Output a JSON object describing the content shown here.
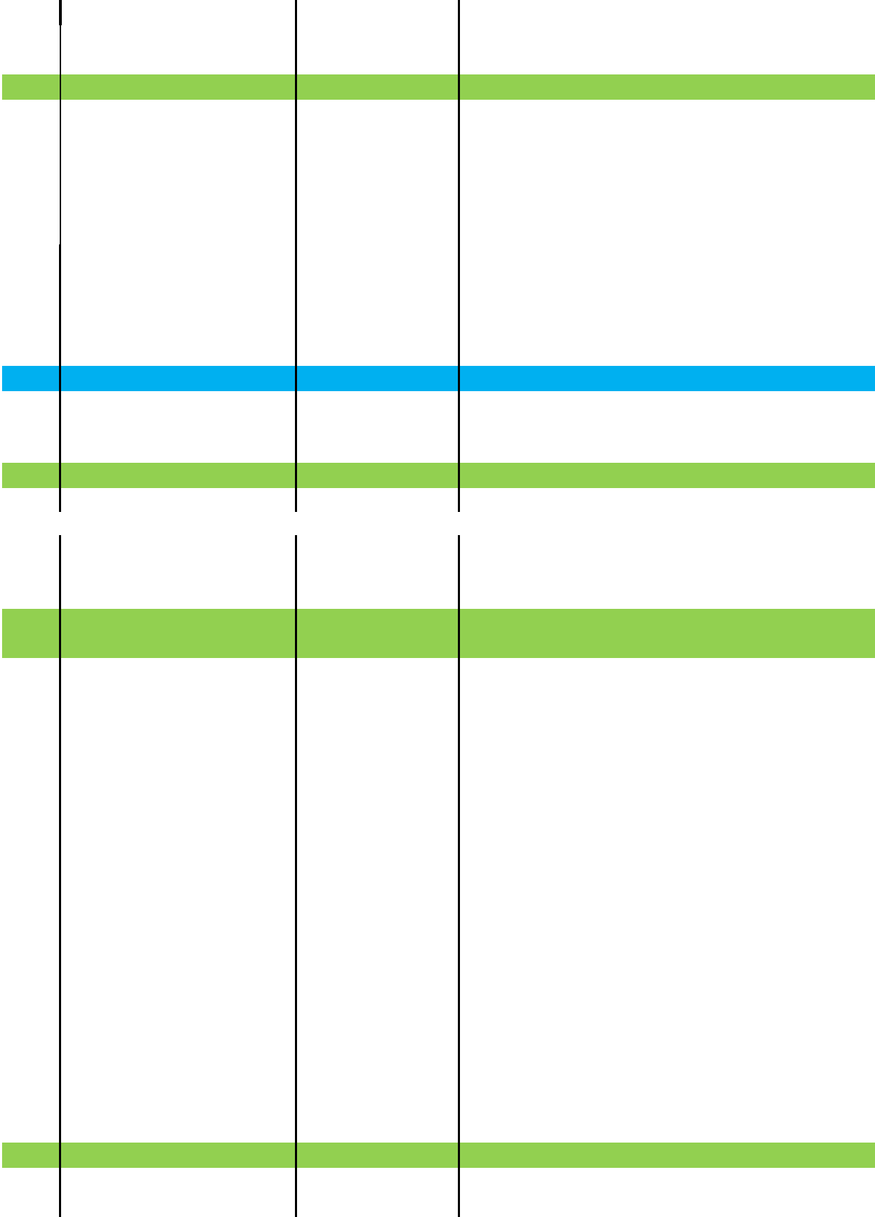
{
  "colors": {
    "background": "#ffffff",
    "band_green": "#92d050",
    "band_blue": "#00b0f0",
    "rule": "#000000"
  },
  "bands": [
    {
      "color": "green"
    },
    {
      "color": "blue"
    },
    {
      "color": "green"
    },
    {
      "color": "green"
    },
    {
      "color": "green"
    }
  ],
  "text": {}
}
